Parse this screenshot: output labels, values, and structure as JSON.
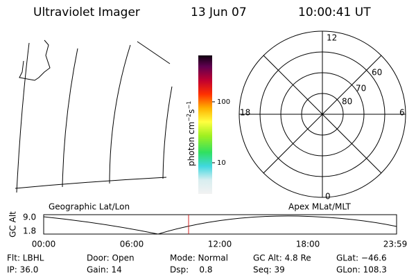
{
  "header": {
    "title": "Ultraviolet Imager",
    "date": "13 Jun 07",
    "time": "10:00:41 UT"
  },
  "colorbar": {
    "label_parts": [
      "photon cm",
      "−2",
      "s",
      "−1"
    ],
    "ticks": [
      "100",
      "10"
    ]
  },
  "polar": {
    "mlt_labels": [
      "12",
      "6",
      "0",
      "18"
    ],
    "mlat_labels": [
      "80",
      "70",
      "60"
    ]
  },
  "panels": {
    "left_label": "Geographic Lat/Lon",
    "right_label": "Apex MLat/MLT"
  },
  "altitude_plot": {
    "y_label": "GC Alt",
    "y_ticks": [
      "9.0",
      "1.8"
    ],
    "x_ticks": [
      "00:00",
      "06:00",
      "12:00",
      "18:00",
      "23:59"
    ]
  },
  "footer": {
    "rows": [
      [
        "Flt: LBHL",
        "Door: Open",
        "Mode: Normal",
        "GC Alt: 4.8 Re",
        "GLat: −46.6"
      ],
      [
        "IP: 36.0",
        "Gain: 14",
        "Dsp:    0.8",
        "Seq: 39",
        "GLon: 108.3"
      ]
    ]
  }
}
